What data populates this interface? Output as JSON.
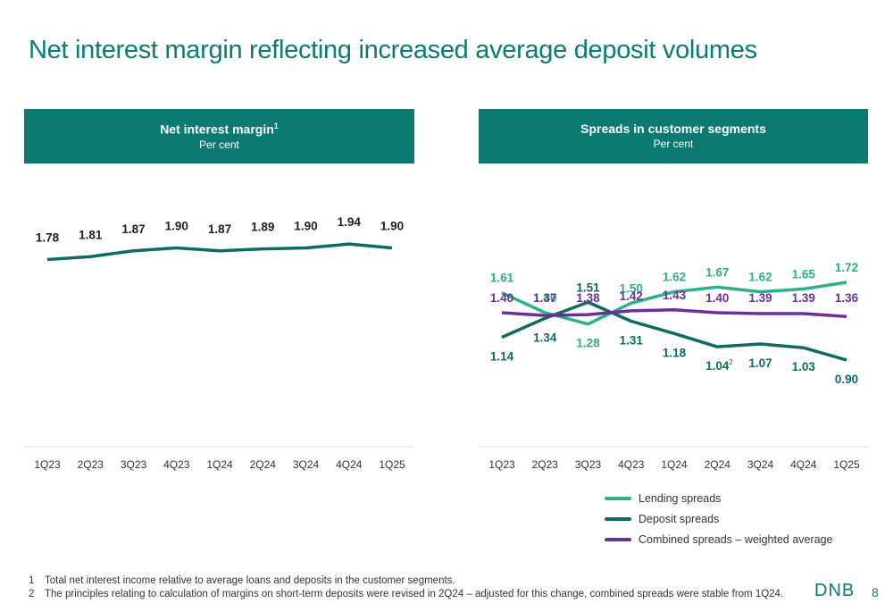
{
  "title": "Net interest margin reflecting increased average deposit volumes",
  "page_number": "8",
  "logo_text": "DNB",
  "colors": {
    "header_bg": "#0d7a72",
    "lending": "#2bb08a",
    "deposit": "#0d6b63",
    "combined": "#6e2f9e",
    "nim": "#0d6b63"
  },
  "panels": {
    "nim": {
      "title": "Net interest margin",
      "title_sup": "1",
      "subtitle": "Per cent"
    },
    "spreads": {
      "title": "Spreads in customer segments",
      "subtitle": "Per cent"
    }
  },
  "footnotes": [
    {
      "num": "1",
      "text": "Total net interest income relative to average loans and deposits in the customer segments."
    },
    {
      "num": "2",
      "text": "The principles relating to calculation of margins on short-term deposits were revised in 2Q24 – adjusted for this change, combined spreads were stable from 1Q24."
    }
  ],
  "chart_data": [
    {
      "type": "line",
      "title": "Net interest margin",
      "categories": [
        "1Q23",
        "2Q23",
        "3Q23",
        "4Q23",
        "1Q24",
        "2Q24",
        "3Q24",
        "4Q24",
        "1Q25"
      ],
      "series": [
        {
          "values": [
            1.78,
            1.81,
            1.87,
            1.9,
            1.87,
            1.89,
            1.9,
            1.94,
            1.9
          ],
          "labels": [
            "1.78",
            "1.81",
            "1.87",
            "1.90",
            "1.87",
            "1.89",
            "1.90",
            "1.94",
            "1.90"
          ]
        }
      ],
      "grid": false
    },
    {
      "type": "line",
      "title": "Spreads in customer segments",
      "categories": [
        "1Q23",
        "2Q23",
        "3Q23",
        "4Q23",
        "1Q24",
        "2Q24",
        "3Q24",
        "4Q24",
        "1Q25"
      ],
      "series": [
        {
          "name": "Lending spreads",
          "values": [
            1.61,
            1.4,
            1.28,
            1.5,
            1.62,
            1.67,
            1.62,
            1.65,
            1.72
          ],
          "labels": [
            "1.61",
            "1.40",
            "1.28",
            "1.50",
            "1.62",
            "1.67",
            "1.62",
            "1.65",
            "1.72"
          ]
        },
        {
          "name": "Deposit spreads",
          "values": [
            1.14,
            1.34,
            1.51,
            1.31,
            1.18,
            1.04,
            1.07,
            1.03,
            0.9
          ],
          "labels": [
            "1.14",
            "1.34",
            "1.51",
            "1.31",
            "1.18",
            "1.04",
            "1.07",
            "1.03",
            "0.90"
          ]
        },
        {
          "name": "Combined spreads – weighted average",
          "values": [
            1.4,
            1.37,
            1.38,
            1.42,
            1.43,
            1.4,
            1.39,
            1.39,
            1.36
          ],
          "labels": [
            "1.40",
            "1.37",
            "1.38",
            "1.42",
            "1.43",
            "1.40",
            "1.39",
            "1.39",
            "1.36"
          ]
        }
      ],
      "annotations": [
        {
          "category": "2Q24",
          "series": "Deposit spreads",
          "superscript": "2"
        }
      ],
      "legend": "bottom",
      "grid": false
    }
  ]
}
